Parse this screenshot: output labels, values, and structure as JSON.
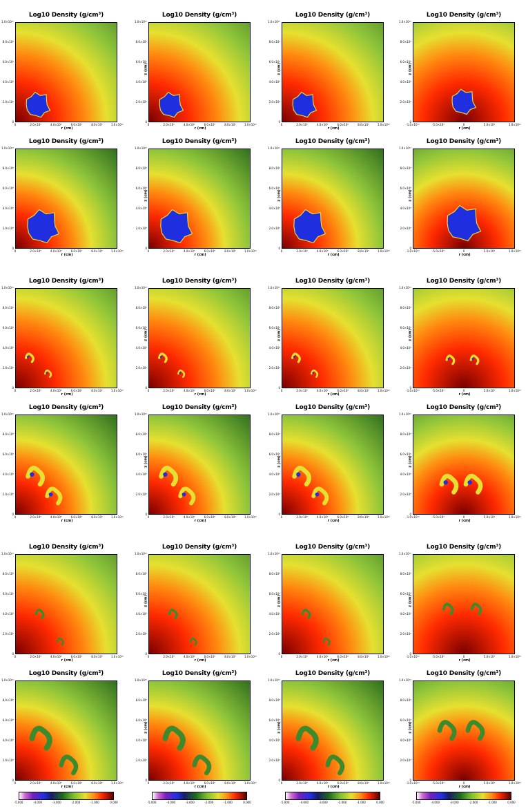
{
  "figure": {
    "panel_title_variants": [
      "Log10 Density (g/cm³)",
      "Log10 Density (g/cm³)"
    ],
    "x_axis_label": "r (cm)",
    "y_axis_label": "z (cm)",
    "colorbar_tick_labels": [
      "-5.000",
      "-4.000",
      "-3.000",
      "-2.000",
      "-1.000",
      "0.000"
    ],
    "colors": {
      "background_outer": "#1e5e1a",
      "background_mid": "#8fc53a",
      "background_inner": "#e6e030",
      "core_hot": "#ff2a00",
      "core_dark": "#7a0000",
      "blob_blue": "#1f2fe0",
      "blob_green": "#3c8a2c"
    },
    "panels": [
      {
        "title": "Log10 Density (g/cm³)",
        "row": 0,
        "col": 0,
        "view": "quadrant",
        "stage": "early"
      },
      {
        "title": "Log10 Density (g/cm³)",
        "row": 0,
        "col": 1,
        "view": "quadrant",
        "stage": "early"
      },
      {
        "title": "Log10 Density (g/cm³)",
        "row": 0,
        "col": 2,
        "view": "quadrant",
        "stage": "early"
      },
      {
        "title": "Log10 Density (g/cm³)",
        "row": 0,
        "col": 3,
        "view": "half",
        "stage": "early"
      },
      {
        "title": "Log10 Density (g/cm³)",
        "row": 1,
        "col": 0,
        "view": "quadrant",
        "stage": "early-zoom"
      },
      {
        "title": "Log10 Density (g/cm³)",
        "row": 1,
        "col": 1,
        "view": "quadrant",
        "stage": "early-zoom"
      },
      {
        "title": "Log10 Density (g/cm³)",
        "row": 1,
        "col": 2,
        "view": "quadrant",
        "stage": "early-zoom"
      },
      {
        "title": "Log10 Density (g/cm³)",
        "row": 1,
        "col": 3,
        "view": "half",
        "stage": "early-zoom"
      },
      {
        "title": "Log10 Density (g/cm³)",
        "row": 2,
        "col": 0,
        "view": "quadrant",
        "stage": "mid"
      },
      {
        "title": "Log10 Density (g/cm³)",
        "row": 2,
        "col": 1,
        "view": "quadrant",
        "stage": "mid"
      },
      {
        "title": "Log10 Density (g/cm³)",
        "row": 2,
        "col": 2,
        "view": "quadrant",
        "stage": "mid"
      },
      {
        "title": "Log10 Density (g/cm³)",
        "row": 2,
        "col": 3,
        "view": "half",
        "stage": "mid"
      },
      {
        "title": "Log10 Density (g/cm³)",
        "row": 3,
        "col": 0,
        "view": "quadrant",
        "stage": "mid-zoom"
      },
      {
        "title": "Log10 Density (g/cm³)",
        "row": 3,
        "col": 1,
        "view": "quadrant",
        "stage": "mid-zoom"
      },
      {
        "title": "Log10 Density (g/cm³)",
        "row": 3,
        "col": 2,
        "view": "quadrant",
        "stage": "mid-zoom"
      },
      {
        "title": "Log10 Density (g/cm³)",
        "row": 3,
        "col": 3,
        "view": "half",
        "stage": "mid-zoom"
      },
      {
        "title": "Log10 Density (g/cm³)",
        "row": 4,
        "col": 0,
        "view": "quadrant",
        "stage": "late"
      },
      {
        "title": "Log10 Density (g/cm³)",
        "row": 4,
        "col": 1,
        "view": "quadrant",
        "stage": "late"
      },
      {
        "title": "Log10 Density (g/cm³)",
        "row": 4,
        "col": 2,
        "view": "quadrant",
        "stage": "late"
      },
      {
        "title": "Log10 Density (g/cm³)",
        "row": 4,
        "col": 3,
        "view": "half",
        "stage": "late"
      },
      {
        "title": "Log10 Density (g/cm³)",
        "row": 5,
        "col": 0,
        "view": "quadrant",
        "stage": "late-zoom"
      },
      {
        "title": "Log10 Density (g/cm³)",
        "row": 5,
        "col": 1,
        "view": "quadrant",
        "stage": "late-zoom"
      },
      {
        "title": "Log10 Density (g/cm³)",
        "row": 5,
        "col": 2,
        "view": "quadrant",
        "stage": "late-zoom"
      },
      {
        "title": "Log10 Density (g/cm³)",
        "row": 5,
        "col": 3,
        "view": "half",
        "stage": "late-zoom"
      }
    ],
    "y_tick_labels": [
      "0",
      "2.0×10⁹",
      "4.0×10⁹",
      "6.0×10⁹",
      "8.0×10⁹",
      "1.0×10¹⁰"
    ],
    "x_tick_labels_quadrant": [
      "0",
      "2.0×10⁹",
      "4.0×10⁹",
      "6.0×10⁹",
      "8.0×10⁹",
      "1.0×10¹⁰"
    ],
    "x_tick_labels_half": [
      "-1.0×10¹⁰",
      "-5.0×10⁹",
      "0",
      "5.0×10⁹",
      "1.0×10¹⁰"
    ]
  }
}
